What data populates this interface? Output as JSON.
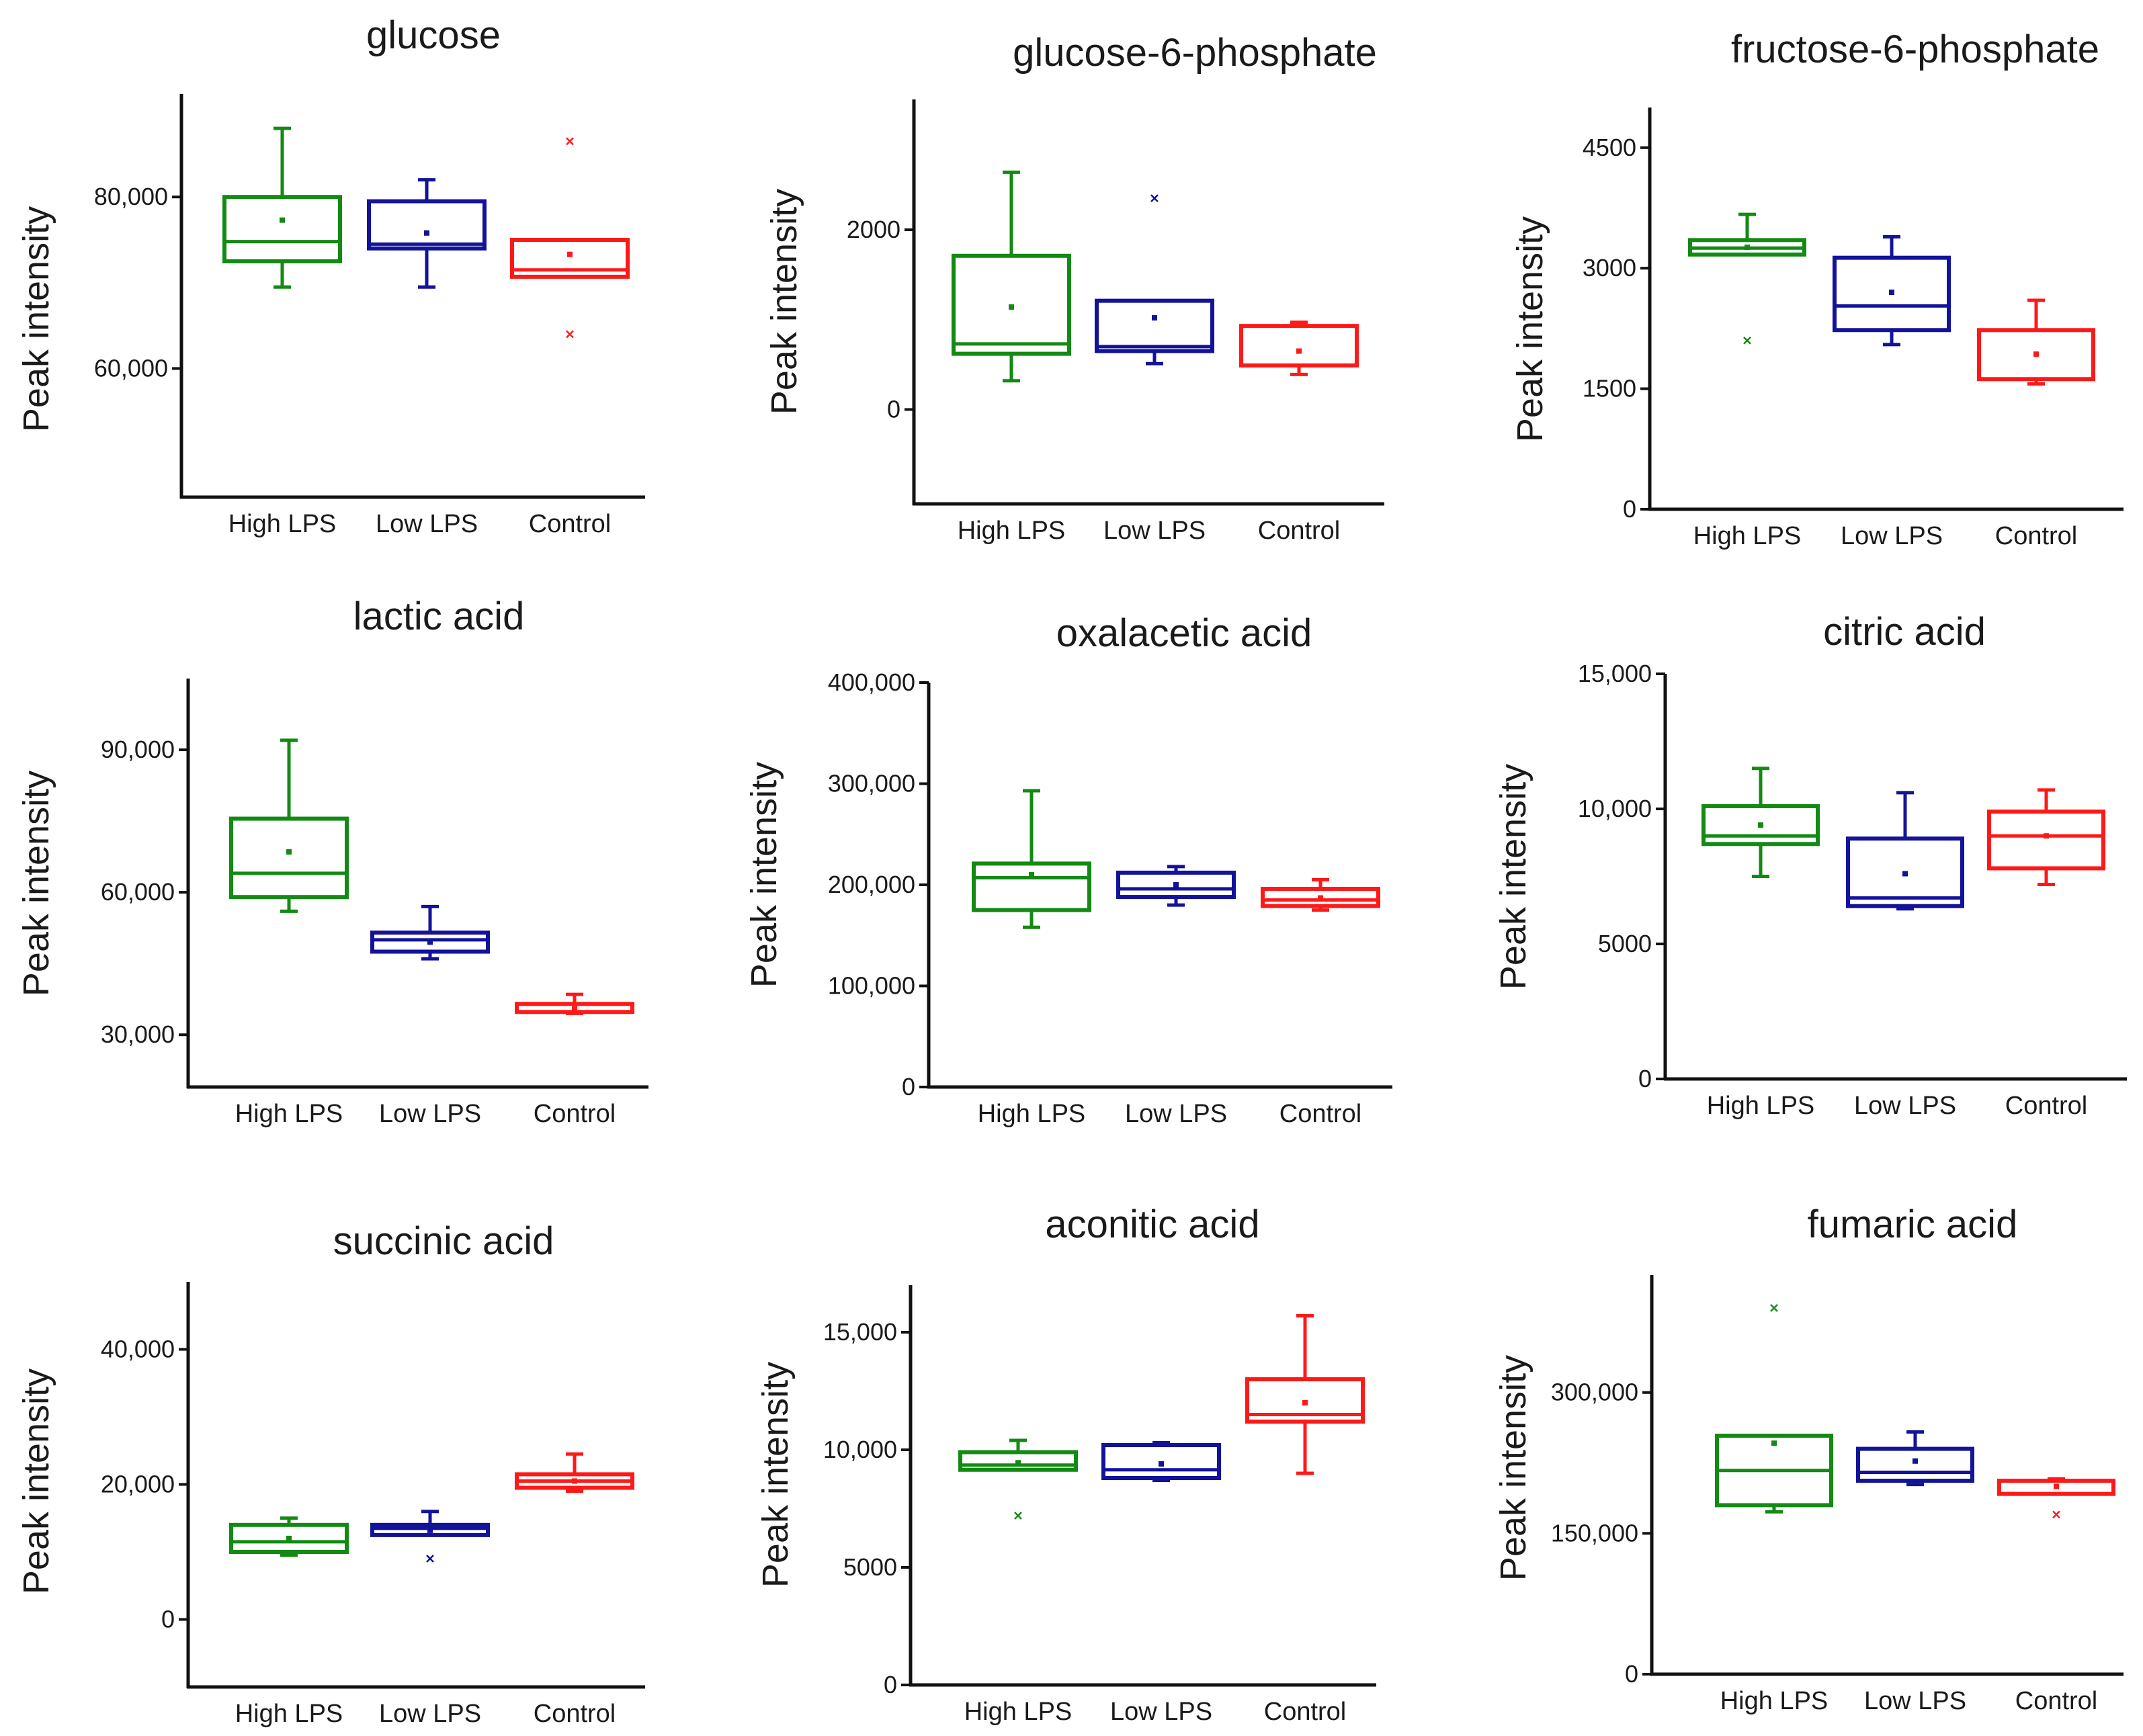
{
  "figure": {
    "background": "#ffffff"
  },
  "group_colors": {
    "High LPS": "#138a13",
    "Low LPS": "#12129a",
    "Control": "#ff1818"
  },
  "chart_data": [
    {
      "type": "box",
      "title": "glucose",
      "xlabel": "",
      "ylabel": "Peak intensity",
      "categories": [
        "High LPS",
        "Low LPS",
        "Control"
      ],
      "ylim": [
        45000,
        92000
      ],
      "ytick_values": [
        60000,
        80000
      ],
      "ytick_labels": [
        "60,000",
        "80,000"
      ],
      "boxes": [
        {
          "group": "High LPS",
          "whisker_low": 69500,
          "q1": 72500,
          "median": 74800,
          "q3": 80000,
          "whisker_high": 88000,
          "mean": 77300,
          "outliers": []
        },
        {
          "group": "Low LPS",
          "whisker_low": 69500,
          "q1": 74000,
          "median": 74500,
          "q3": 79500,
          "whisker_high": 82000,
          "mean": 75800,
          "outliers": []
        },
        {
          "group": "Control",
          "whisker_low": null,
          "q1": 70700,
          "median": 71500,
          "q3": 75000,
          "whisker_high": null,
          "mean": 73300,
          "outliers": [
            86500,
            64000
          ]
        }
      ]
    },
    {
      "type": "box",
      "title": "glucose-6-phosphate",
      "xlabel": "",
      "ylabel": "Peak intensity",
      "categories": [
        "High LPS",
        "Low LPS",
        "Control"
      ],
      "ylim": [
        -1050,
        3450
      ],
      "ytick_values": [
        0,
        2000
      ],
      "ytick_labels": [
        "0",
        "2000"
      ],
      "boxes": [
        {
          "group": "High LPS",
          "whisker_low": 320,
          "q1": 620,
          "median": 730,
          "q3": 1710,
          "whisker_high": 2640,
          "mean": 1140,
          "outliers": []
        },
        {
          "group": "Low LPS",
          "whisker_low": 510,
          "q1": 650,
          "median": 700,
          "q3": 1210,
          "whisker_high": null,
          "mean": 1020,
          "outliers": [
            2350
          ]
        },
        {
          "group": "Control",
          "whisker_low": 390,
          "q1": 490,
          "median": null,
          "q3": 930,
          "whisker_high": 970,
          "mean": 650,
          "outliers": []
        }
      ]
    },
    {
      "type": "box",
      "title": "fructose-6-phosphate",
      "xlabel": "",
      "ylabel": "Peak intensity",
      "categories": [
        "High LPS",
        "Low LPS",
        "Control"
      ],
      "ylim": [
        0,
        5000
      ],
      "ytick_values": [
        0,
        1500,
        3000,
        4500
      ],
      "ytick_labels": [
        "0",
        "1500",
        "3000",
        "4500"
      ],
      "boxes": [
        {
          "group": "High LPS",
          "whisker_low": null,
          "q1": 3170,
          "median": 3250,
          "q3": 3350,
          "whisker_high": 3670,
          "mean": 3260,
          "outliers": [
            2100
          ]
        },
        {
          "group": "Low LPS",
          "whisker_low": 2050,
          "q1": 2230,
          "median": 2530,
          "q3": 3130,
          "whisker_high": 3390,
          "mean": 2700,
          "outliers": []
        },
        {
          "group": "Control",
          "whisker_low": 1560,
          "q1": 1620,
          "median": null,
          "q3": 2230,
          "whisker_high": 2600,
          "mean": 1930,
          "outliers": []
        }
      ]
    },
    {
      "type": "box",
      "title": "lactic acid",
      "xlabel": "",
      "ylabel": "Peak intensity",
      "categories": [
        "High LPS",
        "Low LPS",
        "Control"
      ],
      "ylim": [
        19000,
        105000
      ],
      "ytick_values": [
        30000,
        60000,
        90000
      ],
      "ytick_labels": [
        "30,000",
        "60,000",
        "90,000"
      ],
      "boxes": [
        {
          "group": "High LPS",
          "whisker_low": 56000,
          "q1": 59000,
          "median": 64000,
          "q3": 75500,
          "whisker_high": 92000,
          "mean": 68500,
          "outliers": []
        },
        {
          "group": "Low LPS",
          "whisker_low": 46000,
          "q1": 47500,
          "median": 50000,
          "q3": 51500,
          "whisker_high": 57000,
          "mean": 49500,
          "outliers": []
        },
        {
          "group": "Control",
          "whisker_low": 34500,
          "q1": 34800,
          "median": null,
          "q3": 36500,
          "whisker_high": 38500,
          "mean": 35500,
          "outliers": []
        }
      ]
    },
    {
      "type": "box",
      "title": "oxalacetic acid",
      "xlabel": "",
      "ylabel": "Peak intensity",
      "categories": [
        "High LPS",
        "Low LPS",
        "Control"
      ],
      "ylim": [
        0,
        400000
      ],
      "ytick_values": [
        0,
        100000,
        200000,
        300000,
        400000
      ],
      "ytick_labels": [
        "0",
        "100,000",
        "200,000",
        "300,000",
        "400,000"
      ],
      "boxes": [
        {
          "group": "High LPS",
          "whisker_low": 158000,
          "q1": 175000,
          "median": 207000,
          "q3": 221000,
          "whisker_high": 293000,
          "mean": 210000,
          "outliers": []
        },
        {
          "group": "Low LPS",
          "whisker_low": 180000,
          "q1": 188000,
          "median": 196000,
          "q3": 212000,
          "whisker_high": 218000,
          "mean": 200000,
          "outliers": []
        },
        {
          "group": "Control",
          "whisker_low": 175000,
          "q1": 179000,
          "median": 185000,
          "q3": 196000,
          "whisker_high": 205000,
          "mean": 187000,
          "outliers": []
        }
      ]
    },
    {
      "type": "box",
      "title": "citric acid",
      "xlabel": "",
      "ylabel": "Peak intensity",
      "categories": [
        "High LPS",
        "Low LPS",
        "Control"
      ],
      "ylim": [
        0,
        15000
      ],
      "ytick_values": [
        0,
        5000,
        10000,
        15000
      ],
      "ytick_labels": [
        "0",
        "5000",
        "10,000",
        "15,000"
      ],
      "boxes": [
        {
          "group": "High LPS",
          "whisker_low": 7500,
          "q1": 8700,
          "median": 9000,
          "q3": 10100,
          "whisker_high": 11500,
          "mean": 9400,
          "outliers": []
        },
        {
          "group": "Low LPS",
          "whisker_low": 6300,
          "q1": 6400,
          "median": 6700,
          "q3": 8900,
          "whisker_high": 10600,
          "mean": 7600,
          "outliers": []
        },
        {
          "group": "Control",
          "whisker_low": 7200,
          "q1": 7800,
          "median": 9000,
          "q3": 9900,
          "whisker_high": 10700,
          "mean": 9000,
          "outliers": []
        }
      ]
    },
    {
      "type": "box",
      "title": "succinic acid",
      "xlabel": "",
      "ylabel": "Peak intensity",
      "categories": [
        "High LPS",
        "Low LPS",
        "Control"
      ],
      "ylim": [
        -10000,
        50000
      ],
      "ytick_values": [
        0,
        20000,
        40000
      ],
      "ytick_labels": [
        "0",
        "20,000",
        "40,000"
      ],
      "boxes": [
        {
          "group": "High LPS",
          "whisker_low": 9500,
          "q1": 10000,
          "median": 11500,
          "q3": 14000,
          "whisker_high": 15000,
          "mean": 12000,
          "outliers": []
        },
        {
          "group": "Low LPS",
          "whisker_low": null,
          "q1": 12500,
          "median": 13500,
          "q3": 14000,
          "whisker_high": 16000,
          "mean": 13200,
          "outliers": [
            9000
          ]
        },
        {
          "group": "Control",
          "whisker_low": 19000,
          "q1": 19500,
          "median": 20500,
          "q3": 21500,
          "whisker_high": 24500,
          "mean": 20500,
          "outliers": []
        }
      ]
    },
    {
      "type": "box",
      "title": "aconitic acid",
      "xlabel": "",
      "ylabel": "Peak intensity",
      "categories": [
        "High LPS",
        "Low LPS",
        "Control"
      ],
      "ylim": [
        0,
        17000
      ],
      "ytick_values": [
        0,
        5000,
        10000,
        15000
      ],
      "ytick_labels": [
        "0",
        "5000",
        "10,000",
        "15,000"
      ],
      "boxes": [
        {
          "group": "High LPS",
          "whisker_low": null,
          "q1": 9150,
          "median": 9350,
          "q3": 9900,
          "whisker_high": 10400,
          "mean": 9450,
          "outliers": [
            7200
          ]
        },
        {
          "group": "Low LPS",
          "whisker_low": 8700,
          "q1": 8800,
          "median": 9150,
          "q3": 10200,
          "whisker_high": 10300,
          "mean": 9400,
          "outliers": []
        },
        {
          "group": "Control",
          "whisker_low": 9000,
          "q1": 11200,
          "median": 11500,
          "q3": 13000,
          "whisker_high": 15700,
          "mean": 12000,
          "outliers": []
        }
      ]
    },
    {
      "type": "box",
      "title": "fumaric acid",
      "xlabel": "",
      "ylabel": "Peak intensity",
      "categories": [
        "High LPS",
        "Low LPS",
        "Control"
      ],
      "ylim": [
        0,
        425000
      ],
      "ytick_values": [
        0,
        150000,
        300000
      ],
      "ytick_labels": [
        "0",
        "150,000",
        "300,000"
      ],
      "boxes": [
        {
          "group": "High LPS",
          "whisker_low": 173000,
          "q1": 180000,
          "median": 217000,
          "q3": 254000,
          "whisker_high": null,
          "mean": 246000,
          "outliers": [
            390000
          ]
        },
        {
          "group": "Low LPS",
          "whisker_low": 202000,
          "q1": 206000,
          "median": 215000,
          "q3": 240000,
          "whisker_high": 258000,
          "mean": 227000,
          "outliers": []
        },
        {
          "group": "Control",
          "whisker_low": 192000,
          "q1": 192000,
          "median": null,
          "q3": 206000,
          "whisker_high": 208000,
          "mean": 200000,
          "outliers": [
            170000
          ]
        }
      ]
    }
  ]
}
